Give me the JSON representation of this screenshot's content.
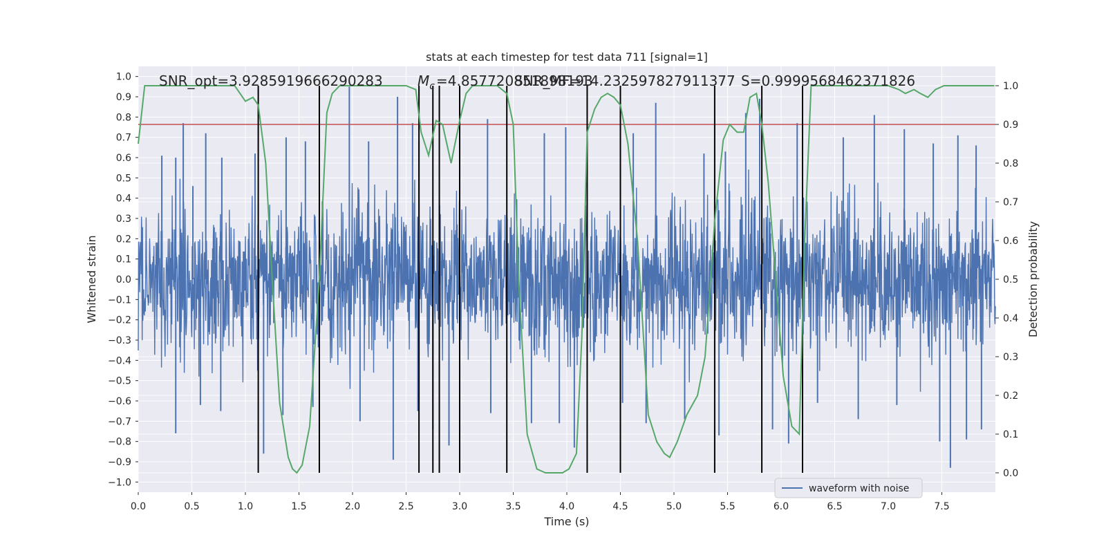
{
  "chart_data": {
    "type": "line",
    "title": "stats at each timestep for test data 711 [signal=1]",
    "xlabel": "Time (s)",
    "ylabel_left": "Whitened strain",
    "ylabel_right": "Detection probability",
    "xlim": [
      0.0,
      8.0
    ],
    "ylim_left": [
      -1.05,
      1.05
    ],
    "ylim_right": [
      -0.05,
      1.05
    ],
    "x_ticks": [
      "0.0",
      "0.5",
      "1.0",
      "1.5",
      "2.0",
      "2.5",
      "3.0",
      "3.5",
      "4.0",
      "4.5",
      "5.0",
      "5.5",
      "6.0",
      "6.5",
      "7.0",
      "7.5"
    ],
    "y_ticks_left": [
      "1.0",
      "0.9",
      "0.8",
      "0.7",
      "0.6",
      "0.5",
      "0.4",
      "0.3",
      "0.2",
      "0.1",
      "0.0",
      "−0.1",
      "−0.2",
      "−0.3",
      "−0.4",
      "−0.5",
      "−0.6",
      "−0.7",
      "−0.8",
      "−0.9",
      "−1.0"
    ],
    "y_ticks_right": [
      "1.0",
      "0.9",
      "0.8",
      "0.7",
      "0.6",
      "0.5",
      "0.4",
      "0.3",
      "0.2",
      "0.1",
      "0.0"
    ],
    "grid": true,
    "legend_position": "lower-right",
    "annotations": {
      "snr_opt": "SNR_opt=3.9285919666290283",
      "mc_prefix": "=4.857720851898193",
      "snr_mf": "SNR_MF=14.232597827911377",
      "s": "S=0.9999568462371826"
    },
    "threshold": {
      "value": 0.9,
      "axis": "right"
    },
    "vertical_lines_x": [
      1.12,
      1.69,
      2.62,
      2.75,
      2.81,
      3.0,
      3.44,
      4.19,
      4.5,
      5.38,
      5.82,
      6.2
    ],
    "series": [
      {
        "name": "waveform with noise",
        "axis": "left",
        "style": "dense noise",
        "envelope_typical": 0.45,
        "peak_samples": [
          {
            "x": 0.22,
            "y": 0.61
          },
          {
            "x": 0.35,
            "y": 0.6
          },
          {
            "x": 0.42,
            "y": 0.77
          },
          {
            "x": 0.51,
            "y": 0.46
          },
          {
            "x": 0.63,
            "y": 0.72
          },
          {
            "x": 0.78,
            "y": 0.6
          },
          {
            "x": 1.09,
            "y": 0.62
          },
          {
            "x": 1.38,
            "y": 0.7
          },
          {
            "x": 1.56,
            "y": 0.68
          },
          {
            "x": 1.97,
            "y": 0.95
          },
          {
            "x": 2.15,
            "y": 0.68
          },
          {
            "x": 2.42,
            "y": 0.9
          },
          {
            "x": 2.56,
            "y": 0.77
          },
          {
            "x": 2.62,
            "y": 0.68
          },
          {
            "x": 3.26,
            "y": 0.79
          },
          {
            "x": 3.79,
            "y": 0.72
          },
          {
            "x": 3.99,
            "y": 0.75
          },
          {
            "x": 4.62,
            "y": 0.72
          },
          {
            "x": 4.83,
            "y": 0.87
          },
          {
            "x": 5.28,
            "y": 0.62
          },
          {
            "x": 5.48,
            "y": 0.63
          },
          {
            "x": 5.67,
            "y": 0.82
          },
          {
            "x": 5.8,
            "y": 0.89
          },
          {
            "x": 6.15,
            "y": 0.77
          },
          {
            "x": 6.58,
            "y": 0.7
          },
          {
            "x": 6.87,
            "y": 0.81
          },
          {
            "x": 7.15,
            "y": 0.74
          },
          {
            "x": 7.42,
            "y": 0.67
          },
          {
            "x": 7.65,
            "y": 0.71
          },
          {
            "x": 7.82,
            "y": 0.66
          },
          {
            "x": 0.35,
            "y": -0.76
          },
          {
            "x": 0.58,
            "y": -0.62
          },
          {
            "x": 0.77,
            "y": -0.65
          },
          {
            "x": 1.17,
            "y": -0.86
          },
          {
            "x": 1.35,
            "y": -0.67
          },
          {
            "x": 1.63,
            "y": -0.63
          },
          {
            "x": 2.07,
            "y": -0.7
          },
          {
            "x": 2.38,
            "y": -0.89
          },
          {
            "x": 2.61,
            "y": -0.65
          },
          {
            "x": 2.75,
            "y": -0.74
          },
          {
            "x": 2.9,
            "y": -0.82
          },
          {
            "x": 3.29,
            "y": -0.66
          },
          {
            "x": 3.67,
            "y": -0.71
          },
          {
            "x": 3.93,
            "y": -0.71
          },
          {
            "x": 4.07,
            "y": -0.83
          },
          {
            "x": 4.52,
            "y": -0.61
          },
          {
            "x": 4.74,
            "y": -0.71
          },
          {
            "x": 5.1,
            "y": -0.69
          },
          {
            "x": 5.42,
            "y": -0.77
          },
          {
            "x": 5.92,
            "y": -0.74
          },
          {
            "x": 6.07,
            "y": -0.81
          },
          {
            "x": 6.34,
            "y": -0.61
          },
          {
            "x": 6.72,
            "y": -0.69
          },
          {
            "x": 7.08,
            "y": -0.62
          },
          {
            "x": 7.48,
            "y": -0.8
          },
          {
            "x": 7.58,
            "y": -0.93
          },
          {
            "x": 7.73,
            "y": -0.79
          },
          {
            "x": 7.87,
            "y": -0.74
          }
        ]
      },
      {
        "name": "",
        "axis": "right",
        "color": "#55a868",
        "points": [
          [
            0.0,
            0.85
          ],
          [
            0.06,
            1.0
          ],
          [
            0.5,
            1.0
          ],
          [
            0.9,
            1.0
          ],
          [
            1.0,
            0.96
          ],
          [
            1.07,
            0.97
          ],
          [
            1.12,
            0.95
          ],
          [
            1.19,
            0.8
          ],
          [
            1.25,
            0.5
          ],
          [
            1.32,
            0.18
          ],
          [
            1.4,
            0.04
          ],
          [
            1.44,
            0.01
          ],
          [
            1.48,
            0.0
          ],
          [
            1.53,
            0.02
          ],
          [
            1.6,
            0.12
          ],
          [
            1.69,
            0.5
          ],
          [
            1.76,
            0.93
          ],
          [
            1.81,
            0.98
          ],
          [
            1.88,
            1.0
          ],
          [
            2.2,
            1.0
          ],
          [
            2.5,
            1.0
          ],
          [
            2.59,
            0.99
          ],
          [
            2.64,
            0.88
          ],
          [
            2.71,
            0.82
          ],
          [
            2.78,
            0.91
          ],
          [
            2.84,
            0.9
          ],
          [
            2.92,
            0.8
          ],
          [
            3.0,
            0.91
          ],
          [
            3.06,
            0.98
          ],
          [
            3.12,
            1.0
          ],
          [
            3.35,
            1.0
          ],
          [
            3.44,
            0.98
          ],
          [
            3.5,
            0.9
          ],
          [
            3.55,
            0.5
          ],
          [
            3.63,
            0.1
          ],
          [
            3.72,
            0.01
          ],
          [
            3.8,
            0.0
          ],
          [
            3.96,
            0.0
          ],
          [
            4.02,
            0.01
          ],
          [
            4.09,
            0.05
          ],
          [
            4.14,
            0.35
          ],
          [
            4.19,
            0.88
          ],
          [
            4.26,
            0.94
          ],
          [
            4.32,
            0.97
          ],
          [
            4.38,
            0.98
          ],
          [
            4.44,
            0.97
          ],
          [
            4.5,
            0.95
          ],
          [
            4.57,
            0.85
          ],
          [
            4.66,
            0.6
          ],
          [
            4.76,
            0.15
          ],
          [
            4.84,
            0.08
          ],
          [
            4.91,
            0.05
          ],
          [
            4.96,
            0.04
          ],
          [
            5.03,
            0.08
          ],
          [
            5.12,
            0.15
          ],
          [
            5.22,
            0.2
          ],
          [
            5.29,
            0.3
          ],
          [
            5.38,
            0.65
          ],
          [
            5.46,
            0.86
          ],
          [
            5.52,
            0.9
          ],
          [
            5.59,
            0.88
          ],
          [
            5.65,
            0.88
          ],
          [
            5.71,
            0.97
          ],
          [
            5.77,
            0.98
          ],
          [
            5.82,
            0.9
          ],
          [
            5.88,
            0.75
          ],
          [
            5.95,
            0.5
          ],
          [
            6.02,
            0.25
          ],
          [
            6.1,
            0.12
          ],
          [
            6.17,
            0.1
          ],
          [
            6.22,
            0.6
          ],
          [
            6.28,
            1.0
          ],
          [
            6.5,
            1.0
          ],
          [
            6.8,
            1.0
          ],
          [
            7.0,
            1.0
          ],
          [
            7.1,
            0.99
          ],
          [
            7.16,
            0.98
          ],
          [
            7.24,
            0.99
          ],
          [
            7.3,
            0.98
          ],
          [
            7.37,
            0.97
          ],
          [
            7.44,
            0.99
          ],
          [
            7.52,
            1.0
          ],
          [
            7.7,
            1.0
          ],
          [
            7.99,
            1.0
          ]
        ]
      }
    ]
  },
  "colors": {
    "plot_background": "#eaeaf2",
    "grid": "#ffffff",
    "waveform": "#4c72b0",
    "probability": "#55a868",
    "threshold": "#c44e52",
    "markers": "#000000",
    "text": "#262626"
  }
}
